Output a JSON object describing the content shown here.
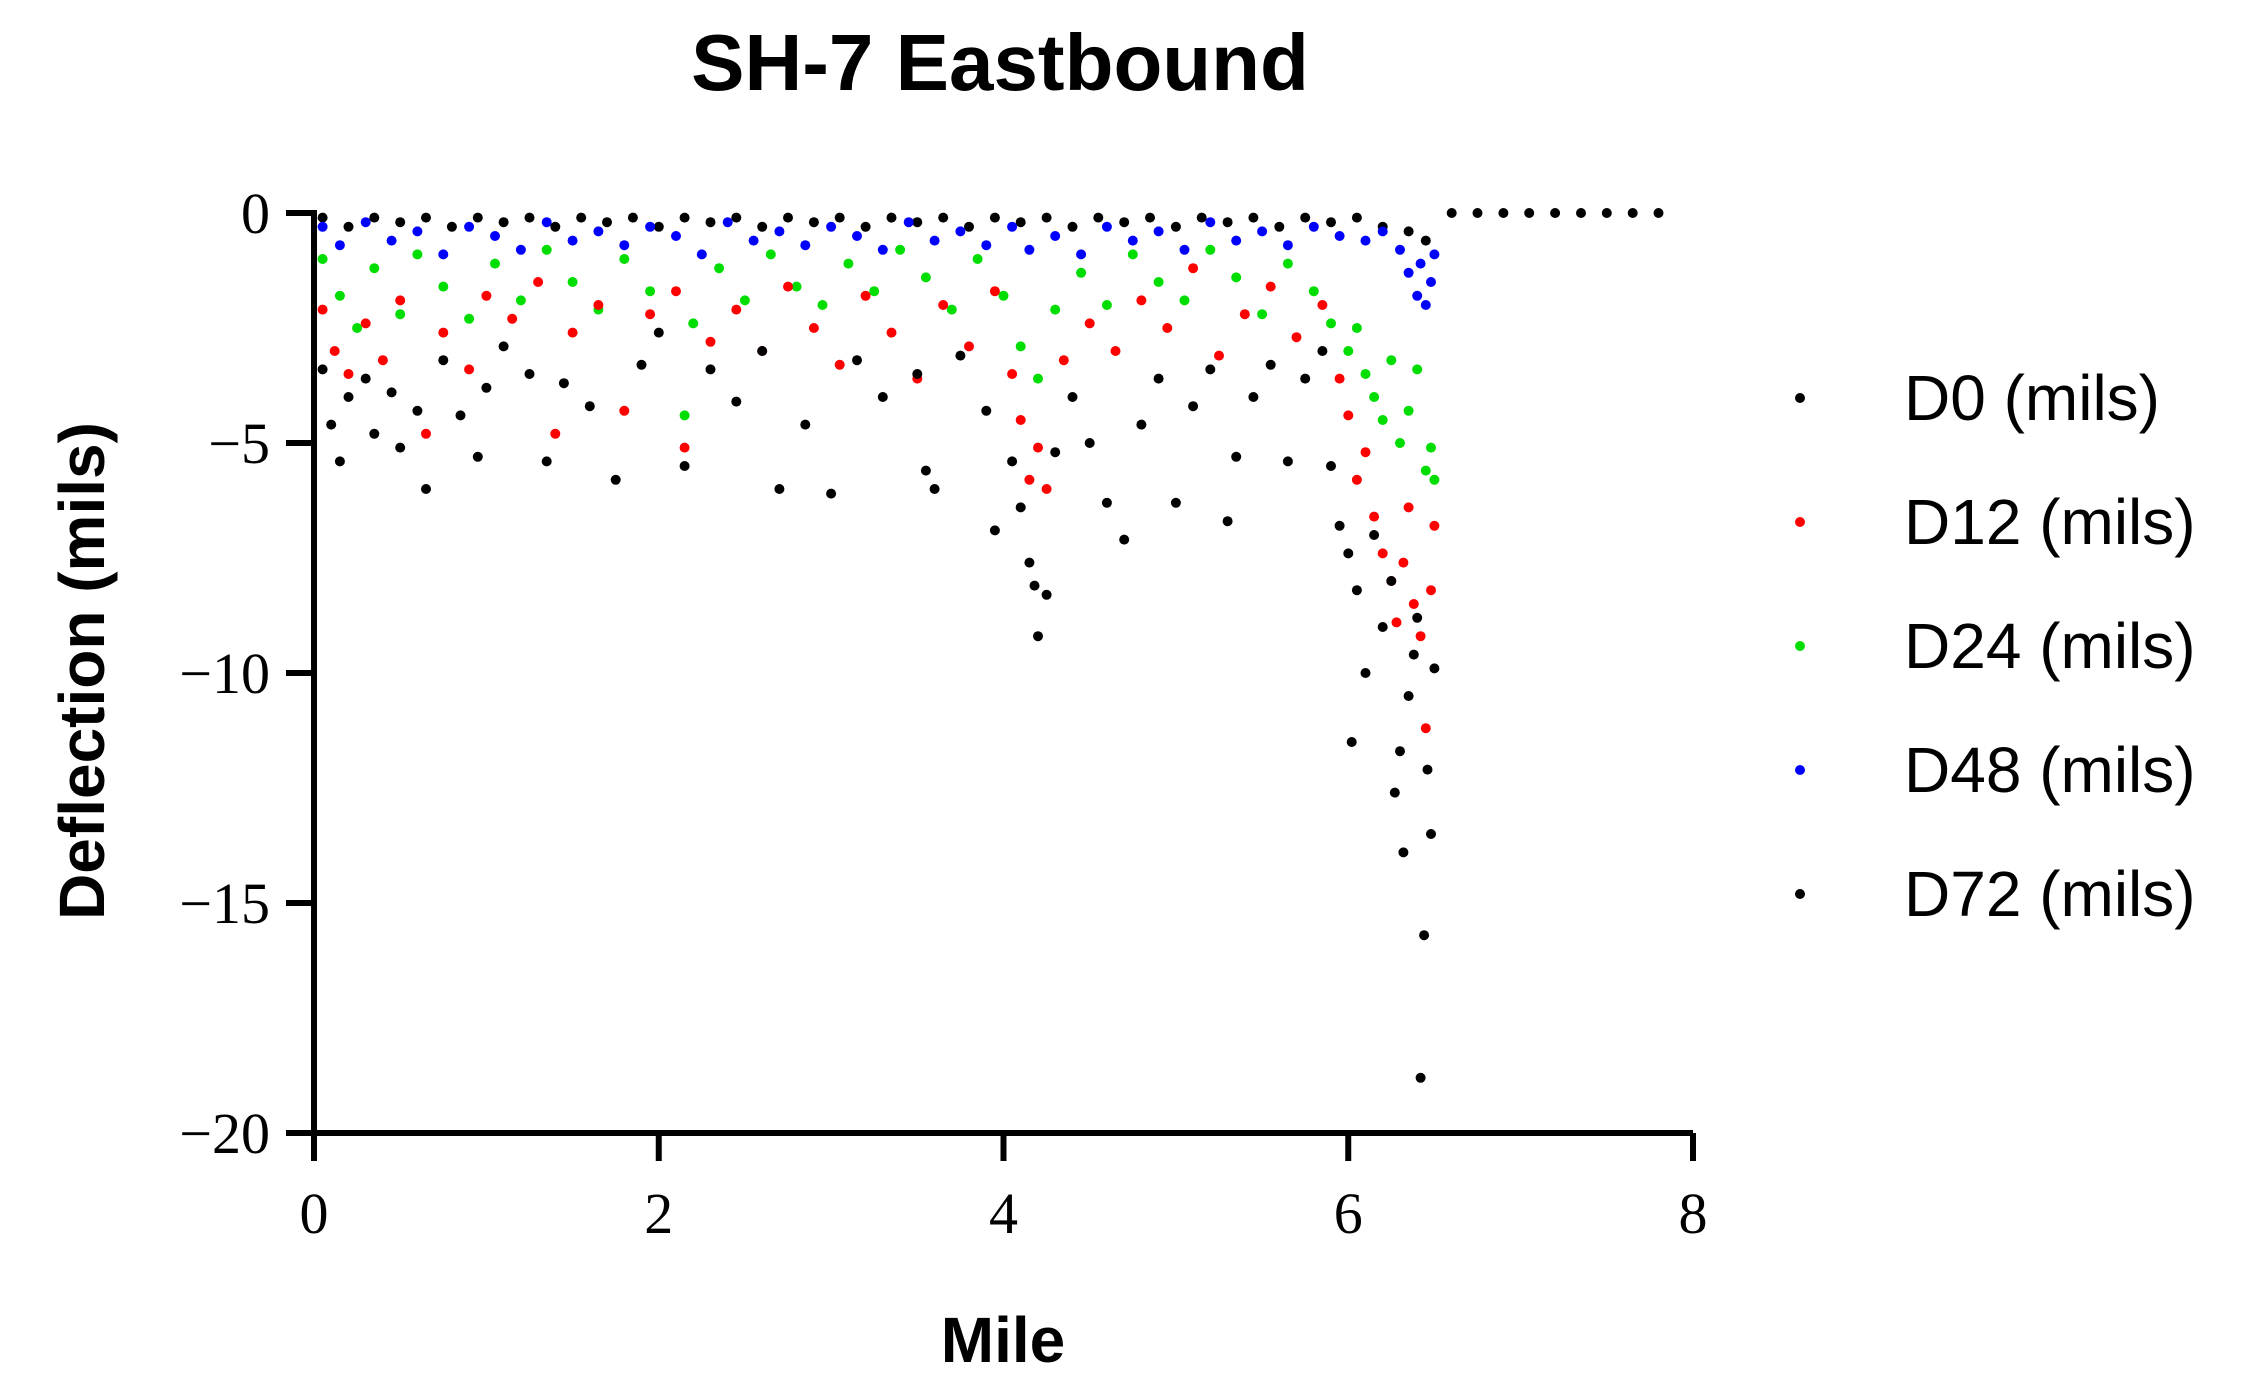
{
  "chart_data": {
    "type": "scatter",
    "title": "SH-7 Eastbound",
    "xlabel": "Mile",
    "ylabel": "Deflection (mils)",
    "xlim": [
      0,
      8
    ],
    "ylim": [
      -20,
      0
    ],
    "x_ticks": [
      "0",
      "2",
      "4",
      "6",
      "8"
    ],
    "y_ticks": [
      "0",
      "−5",
      "−10",
      "−15",
      "−20"
    ],
    "grid": false,
    "legend_position": "right",
    "series": [
      {
        "name": "D0 (mils)",
        "color": "#000000",
        "points": [
          [
            0.05,
            -3.4
          ],
          [
            0.1,
            -4.6
          ],
          [
            0.15,
            -5.4
          ],
          [
            0.2,
            -4.0
          ],
          [
            0.3,
            -3.6
          ],
          [
            0.35,
            -4.8
          ],
          [
            0.45,
            -3.9
          ],
          [
            0.5,
            -5.1
          ],
          [
            0.6,
            -4.3
          ],
          [
            0.65,
            -6.0
          ],
          [
            0.75,
            -3.2
          ],
          [
            0.85,
            -4.4
          ],
          [
            0.95,
            -5.3
          ],
          [
            1.0,
            -3.8
          ],
          [
            1.1,
            -2.9
          ],
          [
            1.25,
            -3.5
          ],
          [
            1.35,
            -5.4
          ],
          [
            1.45,
            -3.7
          ],
          [
            1.6,
            -4.2
          ],
          [
            1.75,
            -5.8
          ],
          [
            1.9,
            -3.3
          ],
          [
            2.0,
            -2.6
          ],
          [
            2.15,
            -5.5
          ],
          [
            2.3,
            -3.4
          ],
          [
            2.45,
            -4.1
          ],
          [
            2.6,
            -3.0
          ],
          [
            2.7,
            -6.0
          ],
          [
            2.85,
            -4.6
          ],
          [
            3.0,
            -6.1
          ],
          [
            3.15,
            -3.2
          ],
          [
            3.3,
            -4.0
          ],
          [
            3.5,
            -3.5
          ],
          [
            3.55,
            -5.6
          ],
          [
            3.6,
            -6.0
          ],
          [
            3.75,
            -3.1
          ],
          [
            3.9,
            -4.3
          ],
          [
            3.95,
            -6.9
          ],
          [
            4.05,
            -5.4
          ],
          [
            4.1,
            -6.4
          ],
          [
            4.15,
            -7.6
          ],
          [
            4.18,
            -8.1
          ],
          [
            4.2,
            -9.2
          ],
          [
            4.25,
            -8.3
          ],
          [
            4.3,
            -5.2
          ],
          [
            4.4,
            -4.0
          ],
          [
            4.5,
            -5.0
          ],
          [
            4.6,
            -6.3
          ],
          [
            4.7,
            -7.1
          ],
          [
            4.8,
            -4.6
          ],
          [
            4.9,
            -3.6
          ],
          [
            5.0,
            -6.3
          ],
          [
            5.1,
            -4.2
          ],
          [
            5.2,
            -3.4
          ],
          [
            5.3,
            -6.7
          ],
          [
            5.35,
            -5.3
          ],
          [
            5.45,
            -4.0
          ],
          [
            5.55,
            -3.3
          ],
          [
            5.65,
            -5.4
          ],
          [
            5.75,
            -3.6
          ],
          [
            5.85,
            -3.0
          ],
          [
            5.9,
            -5.5
          ],
          [
            5.95,
            -6.8
          ],
          [
            6.0,
            -7.4
          ],
          [
            6.02,
            -11.5
          ],
          [
            6.05,
            -8.2
          ],
          [
            6.1,
            -10.0
          ],
          [
            6.15,
            -7.0
          ],
          [
            6.2,
            -9.0
          ],
          [
            6.25,
            -8.0
          ],
          [
            6.27,
            -12.6
          ],
          [
            6.3,
            -11.7
          ],
          [
            6.32,
            -13.9
          ],
          [
            6.35,
            -10.5
          ],
          [
            6.38,
            -9.6
          ],
          [
            6.4,
            -8.8
          ],
          [
            6.42,
            -18.8
          ],
          [
            6.44,
            -15.7
          ],
          [
            6.46,
            -12.1
          ],
          [
            6.48,
            -13.5
          ],
          [
            6.5,
            -9.9
          ]
        ]
      },
      {
        "name": "D12 (mils)",
        "color": "#ff0000",
        "points": [
          [
            0.05,
            -2.1
          ],
          [
            0.12,
            -3.0
          ],
          [
            0.2,
            -3.5
          ],
          [
            0.3,
            -2.4
          ],
          [
            0.4,
            -3.2
          ],
          [
            0.5,
            -1.9
          ],
          [
            0.65,
            -4.8
          ],
          [
            0.75,
            -2.6
          ],
          [
            0.9,
            -3.4
          ],
          [
            1.0,
            -1.8
          ],
          [
            1.15,
            -2.3
          ],
          [
            1.3,
            -1.5
          ],
          [
            1.4,
            -4.8
          ],
          [
            1.5,
            -2.6
          ],
          [
            1.65,
            -2.0
          ],
          [
            1.8,
            -4.3
          ],
          [
            1.95,
            -2.2
          ],
          [
            2.1,
            -1.7
          ],
          [
            2.15,
            -5.1
          ],
          [
            2.3,
            -2.8
          ],
          [
            2.45,
            -2.1
          ],
          [
            2.6,
            -3.0
          ],
          [
            2.75,
            -1.6
          ],
          [
            2.9,
            -2.5
          ],
          [
            3.05,
            -3.3
          ],
          [
            3.2,
            -1.8
          ],
          [
            3.35,
            -2.6
          ],
          [
            3.5,
            -3.6
          ],
          [
            3.65,
            -2.0
          ],
          [
            3.8,
            -2.9
          ],
          [
            3.95,
            -1.7
          ],
          [
            4.05,
            -3.5
          ],
          [
            4.1,
            -4.5
          ],
          [
            4.15,
            -5.8
          ],
          [
            4.2,
            -5.1
          ],
          [
            4.25,
            -6.0
          ],
          [
            4.35,
            -3.2
          ],
          [
            4.5,
            -2.4
          ],
          [
            4.65,
            -3.0
          ],
          [
            4.8,
            -1.9
          ],
          [
            4.95,
            -2.5
          ],
          [
            5.1,
            -1.2
          ],
          [
            5.25,
            -3.1
          ],
          [
            5.4,
            -2.2
          ],
          [
            5.55,
            -1.6
          ],
          [
            5.7,
            -2.7
          ],
          [
            5.85,
            -2.0
          ],
          [
            5.95,
            -3.6
          ],
          [
            6.0,
            -4.4
          ],
          [
            6.05,
            -5.8
          ],
          [
            6.1,
            -5.2
          ],
          [
            6.15,
            -6.6
          ],
          [
            6.2,
            -7.4
          ],
          [
            6.25,
            -8.0
          ],
          [
            6.28,
            -8.9
          ],
          [
            6.32,
            -7.6
          ],
          [
            6.35,
            -6.4
          ],
          [
            6.38,
            -8.5
          ],
          [
            6.42,
            -9.2
          ],
          [
            6.45,
            -11.2
          ],
          [
            6.48,
            -8.2
          ],
          [
            6.5,
            -6.8
          ]
        ]
      },
      {
        "name": "D24 (mils)",
        "color": "#00dd00",
        "points": [
          [
            0.05,
            -1.0
          ],
          [
            0.15,
            -1.8
          ],
          [
            0.25,
            -2.5
          ],
          [
            0.35,
            -1.2
          ],
          [
            0.5,
            -2.2
          ],
          [
            0.6,
            -0.9
          ],
          [
            0.75,
            -1.6
          ],
          [
            0.9,
            -2.3
          ],
          [
            1.05,
            -1.1
          ],
          [
            1.2,
            -1.9
          ],
          [
            1.35,
            -0.8
          ],
          [
            1.5,
            -1.5
          ],
          [
            1.65,
            -2.1
          ],
          [
            1.8,
            -1.0
          ],
          [
            1.95,
            -1.7
          ],
          [
            2.15,
            -4.4
          ],
          [
            2.2,
            -2.4
          ],
          [
            2.35,
            -1.2
          ],
          [
            2.5,
            -1.9
          ],
          [
            2.65,
            -0.9
          ],
          [
            2.8,
            -1.6
          ],
          [
            2.95,
            -2.0
          ],
          [
            3.1,
            -1.1
          ],
          [
            3.25,
            -1.7
          ],
          [
            3.4,
            -0.8
          ],
          [
            3.55,
            -1.4
          ],
          [
            3.7,
            -2.1
          ],
          [
            3.85,
            -1.0
          ],
          [
            4.0,
            -1.8
          ],
          [
            4.1,
            -2.9
          ],
          [
            4.2,
            -3.6
          ],
          [
            4.3,
            -2.1
          ],
          [
            4.45,
            -1.3
          ],
          [
            4.6,
            -2.0
          ],
          [
            4.75,
            -0.9
          ],
          [
            4.9,
            -1.5
          ],
          [
            5.05,
            -1.9
          ],
          [
            5.2,
            -0.8
          ],
          [
            5.35,
            -1.4
          ],
          [
            5.5,
            -2.2
          ],
          [
            5.65,
            -1.1
          ],
          [
            5.8,
            -1.7
          ],
          [
            5.9,
            -2.4
          ],
          [
            6.0,
            -3.0
          ],
          [
            6.05,
            -2.5
          ],
          [
            6.1,
            -3.5
          ],
          [
            6.15,
            -4.0
          ],
          [
            6.2,
            -4.5
          ],
          [
            6.25,
            -3.2
          ],
          [
            6.3,
            -5.0
          ],
          [
            6.35,
            -4.3
          ],
          [
            6.4,
            -3.4
          ],
          [
            6.45,
            -5.6
          ],
          [
            6.48,
            -5.1
          ],
          [
            6.5,
            -5.8
          ]
        ]
      },
      {
        "name": "D48 (mils)",
        "color": "#0000ff",
        "points": [
          [
            0.05,
            -0.3
          ],
          [
            0.15,
            -0.7
          ],
          [
            0.3,
            -0.2
          ],
          [
            0.45,
            -0.6
          ],
          [
            0.6,
            -0.4
          ],
          [
            0.75,
            -0.9
          ],
          [
            0.9,
            -0.3
          ],
          [
            1.05,
            -0.5
          ],
          [
            1.2,
            -0.8
          ],
          [
            1.35,
            -0.2
          ],
          [
            1.5,
            -0.6
          ],
          [
            1.65,
            -0.4
          ],
          [
            1.8,
            -0.7
          ],
          [
            1.95,
            -0.3
          ],
          [
            2.1,
            -0.5
          ],
          [
            2.25,
            -0.9
          ],
          [
            2.4,
            -0.2
          ],
          [
            2.55,
            -0.6
          ],
          [
            2.7,
            -0.4
          ],
          [
            2.85,
            -0.7
          ],
          [
            3.0,
            -0.3
          ],
          [
            3.15,
            -0.5
          ],
          [
            3.3,
            -0.8
          ],
          [
            3.45,
            -0.2
          ],
          [
            3.6,
            -0.6
          ],
          [
            3.75,
            -0.4
          ],
          [
            3.9,
            -0.7
          ],
          [
            4.05,
            -0.3
          ],
          [
            4.15,
            -0.8
          ],
          [
            4.3,
            -0.5
          ],
          [
            4.45,
            -0.9
          ],
          [
            4.6,
            -0.3
          ],
          [
            4.75,
            -0.6
          ],
          [
            4.9,
            -0.4
          ],
          [
            5.05,
            -0.8
          ],
          [
            5.2,
            -0.2
          ],
          [
            5.35,
            -0.6
          ],
          [
            5.5,
            -0.4
          ],
          [
            5.65,
            -0.7
          ],
          [
            5.8,
            -0.3
          ],
          [
            5.95,
            -0.5
          ],
          [
            6.1,
            -0.6
          ],
          [
            6.2,
            -0.4
          ],
          [
            6.3,
            -0.8
          ],
          [
            6.35,
            -1.3
          ],
          [
            6.4,
            -1.8
          ],
          [
            6.42,
            -1.1
          ],
          [
            6.45,
            -2.0
          ],
          [
            6.48,
            -1.5
          ],
          [
            6.5,
            -0.9
          ]
        ]
      },
      {
        "name": "D72 (mils)",
        "color": "#000000",
        "points": [
          [
            0.05,
            -0.1
          ],
          [
            0.2,
            -0.3
          ],
          [
            0.35,
            -0.1
          ],
          [
            0.5,
            -0.2
          ],
          [
            0.65,
            -0.1
          ],
          [
            0.8,
            -0.3
          ],
          [
            0.95,
            -0.1
          ],
          [
            1.1,
            -0.2
          ],
          [
            1.25,
            -0.1
          ],
          [
            1.4,
            -0.3
          ],
          [
            1.55,
            -0.1
          ],
          [
            1.7,
            -0.2
          ],
          [
            1.85,
            -0.1
          ],
          [
            2.0,
            -0.3
          ],
          [
            2.15,
            -0.1
          ],
          [
            2.3,
            -0.2
          ],
          [
            2.45,
            -0.1
          ],
          [
            2.6,
            -0.3
          ],
          [
            2.75,
            -0.1
          ],
          [
            2.9,
            -0.2
          ],
          [
            3.05,
            -0.1
          ],
          [
            3.2,
            -0.3
          ],
          [
            3.35,
            -0.1
          ],
          [
            3.5,
            -0.2
          ],
          [
            3.65,
            -0.1
          ],
          [
            3.8,
            -0.3
          ],
          [
            3.95,
            -0.1
          ],
          [
            4.1,
            -0.2
          ],
          [
            4.25,
            -0.1
          ],
          [
            4.4,
            -0.3
          ],
          [
            4.55,
            -0.1
          ],
          [
            4.7,
            -0.2
          ],
          [
            4.85,
            -0.1
          ],
          [
            5.0,
            -0.3
          ],
          [
            5.15,
            -0.1
          ],
          [
            5.3,
            -0.2
          ],
          [
            5.45,
            -0.1
          ],
          [
            5.6,
            -0.3
          ],
          [
            5.75,
            -0.1
          ],
          [
            5.9,
            -0.2
          ],
          [
            6.05,
            -0.1
          ],
          [
            6.2,
            -0.3
          ],
          [
            6.35,
            -0.4
          ],
          [
            6.45,
            -0.6
          ],
          [
            6.6,
            0
          ],
          [
            6.75,
            0
          ],
          [
            6.9,
            0
          ],
          [
            7.05,
            0
          ],
          [
            7.2,
            0
          ],
          [
            7.35,
            0
          ],
          [
            7.5,
            0
          ],
          [
            7.65,
            0
          ],
          [
            7.8,
            0
          ]
        ]
      }
    ]
  }
}
